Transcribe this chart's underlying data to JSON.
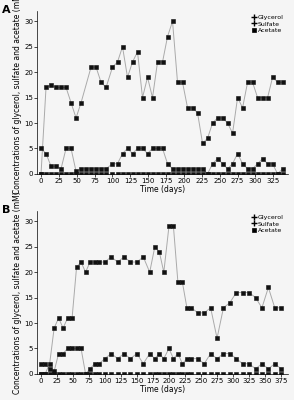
{
  "panel_A": {
    "glycerol_x": [
      0,
      7,
      14,
      21,
      28,
      35,
      42,
      49,
      56,
      70,
      77,
      84,
      91,
      100,
      107,
      114,
      121,
      128,
      135,
      142,
      149,
      156,
      163,
      170,
      177,
      184,
      191,
      198,
      205,
      212,
      219,
      226,
      233,
      240,
      247,
      254,
      261,
      268,
      275,
      282,
      289,
      296,
      303,
      310,
      317,
      324,
      331,
      338
    ],
    "glycerol_y": [
      0,
      17,
      17.5,
      17,
      17,
      17,
      14,
      11,
      14,
      21,
      21,
      18,
      17,
      21,
      22,
      25,
      19,
      22,
      24,
      15,
      19,
      15,
      22,
      22,
      27,
      30,
      18,
      18,
      13,
      13,
      12,
      6,
      7,
      10,
      11,
      11,
      10,
      8,
      15,
      13,
      18,
      18,
      15,
      15,
      15,
      19,
      18,
      18
    ],
    "sulfate_x": [
      0,
      7,
      14,
      21,
      28,
      35,
      42,
      49,
      56,
      63,
      70,
      77,
      84,
      91,
      100,
      107,
      114,
      121,
      128,
      135,
      142,
      149,
      156,
      163,
      170,
      177,
      184,
      191,
      198,
      205,
      212,
      219,
      226,
      233,
      240,
      247,
      254,
      261,
      268,
      275,
      282,
      289,
      296,
      303,
      310,
      317,
      324,
      331,
      338
    ],
    "sulfate_y": [
      5,
      4,
      1.5,
      1.5,
      1,
      5,
      5,
      0.5,
      1,
      1,
      1,
      1,
      1,
      1,
      2,
      2,
      4,
      5,
      4,
      5,
      5,
      4,
      5,
      5,
      5,
      2,
      1,
      1,
      1,
      1,
      1,
      1,
      1,
      0,
      2,
      3,
      2,
      1,
      2,
      4,
      2,
      1,
      1,
      2,
      3,
      2,
      2,
      0,
      1
    ],
    "acetate_x": [
      0,
      7,
      14,
      21,
      28,
      35,
      42,
      49,
      56,
      63,
      70,
      77,
      84,
      91,
      100,
      107,
      114,
      121,
      128,
      135,
      142,
      149,
      156,
      163,
      170,
      177,
      184,
      191,
      198,
      205,
      212,
      219,
      226,
      233,
      240,
      247,
      254,
      261,
      268,
      275,
      282,
      289,
      296,
      303,
      310,
      317,
      324,
      331,
      338
    ],
    "acetate_y": [
      0,
      0,
      0,
      0,
      0,
      0,
      0,
      0,
      0,
      0,
      0,
      0,
      0,
      0,
      0,
      0,
      0,
      0,
      0,
      0,
      0,
      0,
      0,
      0,
      0,
      0,
      0,
      0,
      0,
      0,
      0,
      0,
      0,
      0,
      0,
      0,
      0,
      0,
      0,
      0,
      0,
      0,
      0,
      0,
      0,
      0,
      0,
      0,
      0
    ],
    "ylim": [
      0,
      32
    ],
    "xlim": [
      -5,
      345
    ],
    "xticks": [
      0,
      25,
      50,
      75,
      100,
      125,
      150,
      175,
      200,
      225,
      250,
      275,
      300,
      325
    ],
    "yticks": [
      0,
      5,
      10,
      15,
      20,
      25,
      30
    ],
    "xlabel": "Time (days)",
    "ylabel": "Concentrations of glycerol, sulfate and acetate (mM)",
    "label": "A"
  },
  "panel_B": {
    "glycerol_x": [
      0,
      7,
      14,
      21,
      28,
      35,
      42,
      49,
      56,
      63,
      70,
      77,
      84,
      91,
      100,
      110,
      120,
      130,
      140,
      150,
      160,
      170,
      178,
      185,
      192,
      200,
      207,
      214,
      221,
      228,
      235,
      245,
      255,
      265,
      275,
      285,
      295,
      305,
      315,
      325,
      335,
      345,
      355,
      365,
      375
    ],
    "glycerol_y": [
      0,
      0,
      2,
      9,
      11,
      9,
      11,
      11,
      21,
      22,
      20,
      22,
      22,
      22,
      22,
      23,
      22,
      23,
      22,
      22,
      23,
      20,
      25,
      24,
      20,
      29,
      29,
      18,
      18,
      13,
      13,
      12,
      12,
      13,
      7,
      13,
      14,
      16,
      16,
      16,
      15,
      13,
      17,
      13,
      13
    ],
    "sulfate_x": [
      0,
      7,
      14,
      21,
      28,
      35,
      42,
      49,
      56,
      63,
      70,
      77,
      84,
      91,
      100,
      110,
      120,
      130,
      140,
      150,
      160,
      170,
      178,
      185,
      192,
      200,
      207,
      214,
      221,
      228,
      235,
      245,
      255,
      265,
      275,
      285,
      295,
      305,
      315,
      325,
      335,
      345,
      355,
      365,
      375
    ],
    "sulfate_y": [
      2,
      2,
      1,
      0.5,
      4,
      4,
      5,
      5,
      5,
      5,
      0,
      1,
      2,
      2,
      3,
      4,
      3,
      4,
      3,
      4,
      2,
      4,
      3,
      4,
      3,
      5,
      3,
      4,
      2,
      3,
      3,
      3,
      2,
      4,
      3,
      4,
      4,
      3,
      2,
      2,
      1,
      2,
      1,
      2,
      1
    ],
    "acetate_x": [
      0,
      7,
      14,
      21,
      28,
      35,
      42,
      49,
      56,
      63,
      70,
      77,
      84,
      91,
      100,
      110,
      120,
      130,
      140,
      150,
      160,
      170,
      178,
      185,
      192,
      200,
      207,
      214,
      221,
      228,
      235,
      245,
      255,
      265,
      275,
      285,
      295,
      305,
      315,
      325,
      335,
      345,
      355,
      365,
      375
    ],
    "acetate_y": [
      0,
      0,
      0,
      0,
      0,
      0,
      0,
      0,
      0,
      0,
      0,
      0,
      0,
      0,
      0,
      0,
      0,
      0,
      0,
      0,
      0,
      0,
      0,
      0,
      0,
      0,
      0,
      0,
      0,
      0,
      0,
      0,
      0,
      0,
      0,
      0,
      0,
      0,
      0,
      0,
      0,
      0,
      0,
      0,
      0
    ],
    "ylim": [
      0,
      32
    ],
    "xlim": [
      -5,
      385
    ],
    "xticks": [
      0,
      25,
      50,
      75,
      100,
      125,
      150,
      175,
      200,
      225,
      250,
      275,
      300,
      325,
      350,
      375
    ],
    "yticks": [
      0,
      5,
      10,
      15,
      20,
      25,
      30
    ],
    "xlabel": "Time (days)",
    "ylabel": "Concentrations of glycerol, sulfate and acetate (mM)",
    "label": "B"
  },
  "line_color": "#aaaaaa",
  "marker_color": "#111111",
  "marker_size": 3.5,
  "line_width": 0.7,
  "font_size": 5.5,
  "tick_fontsize": 5,
  "background_color": "#f5f5f5"
}
